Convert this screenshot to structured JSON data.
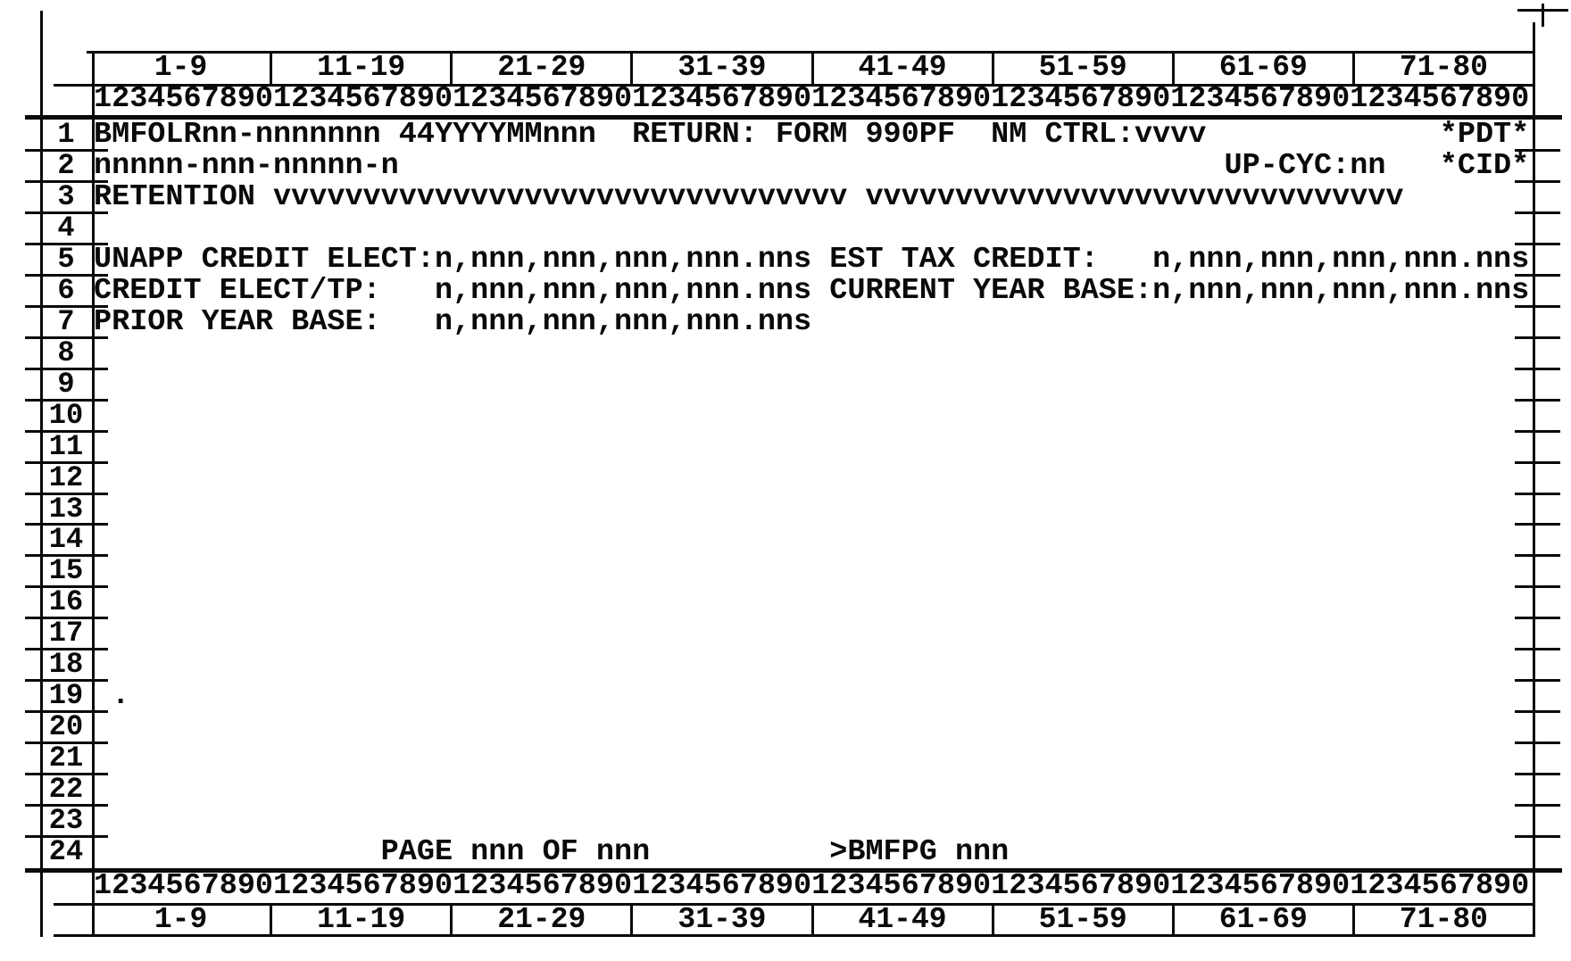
{
  "colors": {
    "ink": "#0a0a0a",
    "paper": "#ffffff"
  },
  "header": {
    "column_ranges": [
      "1-9",
      "11-19",
      "21-29",
      "31-39",
      "41-49",
      "51-59",
      "61-69",
      "71-80"
    ],
    "ruler": "12345678901234567890123456789012345678901234567890123456789012345678901234567890"
  },
  "footer": {
    "column_ranges": [
      "1-9",
      "11-19",
      "21-29",
      "31-39",
      "41-49",
      "51-59",
      "61-69",
      "71-80"
    ],
    "ruler": "12345678901234567890123456789012345678901234567890123456789012345678901234567890"
  },
  "screen": {
    "rows": [
      {
        "num": "1",
        "text": "BMFOLRnn-nnnnnnn 44YYYYMMnnn  RETURN: FORM 990PF  NM CTRL:vvvv             *PDT*"
      },
      {
        "num": "2",
        "text": "nnnnn-nnn-nnnnn-n                                              UP-CYC:nn   *CID*"
      },
      {
        "num": "3",
        "text": "RETENTION vvvvvvvvvvvvvvvvvvvvvvvvvvvvvvvv vvvvvvvvvvvvvvvvvvvvvvvvvvvvvv"
      },
      {
        "num": "4",
        "text": ""
      },
      {
        "num": "5",
        "text": "UNAPP CREDIT ELECT:n,nnn,nnn,nnn,nnn.nns EST TAX CREDIT:   n,nnn,nnn,nnn,nnn.nns"
      },
      {
        "num": "6",
        "text": "CREDIT ELECT/TP:   n,nnn,nnn,nnn,nnn.nns CURRENT YEAR BASE:n,nnn,nnn,nnn,nnn.nns"
      },
      {
        "num": "7",
        "text": "PRIOR YEAR BASE:   n,nnn,nnn,nnn,nnn.nns"
      },
      {
        "num": "8",
        "text": ""
      },
      {
        "num": "9",
        "text": ""
      },
      {
        "num": "10",
        "text": ""
      },
      {
        "num": "11",
        "text": ""
      },
      {
        "num": "12",
        "text": ""
      },
      {
        "num": "13",
        "text": ""
      },
      {
        "num": "14",
        "text": ""
      },
      {
        "num": "15",
        "text": ""
      },
      {
        "num": "16",
        "text": ""
      },
      {
        "num": "17",
        "text": ""
      },
      {
        "num": "18",
        "text": ""
      },
      {
        "num": "19",
        "text": " ."
      },
      {
        "num": "20",
        "text": ""
      },
      {
        "num": "21",
        "text": ""
      },
      {
        "num": "22",
        "text": ""
      },
      {
        "num": "23",
        "text": ""
      },
      {
        "num": "24",
        "text": "                PAGE nnn OF nnn          >BMFPG nnn"
      }
    ]
  }
}
